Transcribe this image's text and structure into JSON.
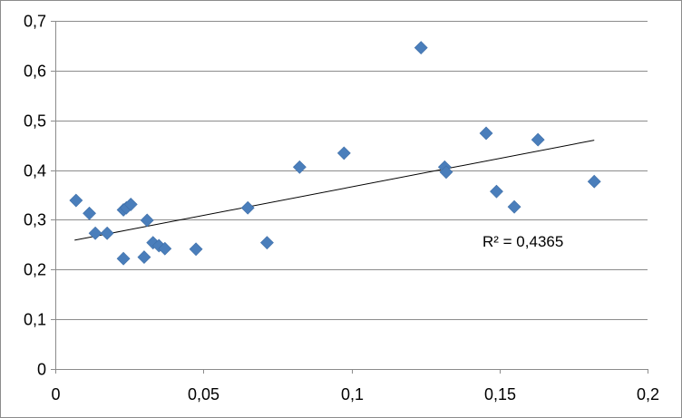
{
  "chart_data": {
    "type": "scatter",
    "title": "",
    "xlabel": "",
    "ylabel": "",
    "xlim": [
      0,
      0.2
    ],
    "ylim": [
      0,
      0.7
    ],
    "x_ticks": [
      0,
      0.05,
      0.1,
      0.15,
      0.2
    ],
    "y_ticks": [
      0,
      0.1,
      0.2,
      0.3,
      0.4,
      0.5,
      0.6,
      0.7
    ],
    "x_tick_labels": [
      "0",
      "0,05",
      "0,1",
      "0,15",
      "0,2"
    ],
    "y_tick_labels": [
      "0",
      "0,1",
      "0,2",
      "0,3",
      "0,4",
      "0,5",
      "0,6",
      "0,7"
    ],
    "grid": "horizontal",
    "legend": "none",
    "marker": "diamond",
    "marker_color": "#4a7ebb",
    "points": [
      {
        "x": 0.007,
        "y": 0.339
      },
      {
        "x": 0.0115,
        "y": 0.313
      },
      {
        "x": 0.0135,
        "y": 0.273
      },
      {
        "x": 0.0175,
        "y": 0.273
      },
      {
        "x": 0.023,
        "y": 0.222
      },
      {
        "x": 0.023,
        "y": 0.32
      },
      {
        "x": 0.024,
        "y": 0.324
      },
      {
        "x": 0.0255,
        "y": 0.331
      },
      {
        "x": 0.03,
        "y": 0.225
      },
      {
        "x": 0.031,
        "y": 0.299
      },
      {
        "x": 0.033,
        "y": 0.254
      },
      {
        "x": 0.035,
        "y": 0.248
      },
      {
        "x": 0.037,
        "y": 0.242
      },
      {
        "x": 0.0475,
        "y": 0.241
      },
      {
        "x": 0.065,
        "y": 0.324
      },
      {
        "x": 0.0715,
        "y": 0.254
      },
      {
        "x": 0.0825,
        "y": 0.406
      },
      {
        "x": 0.0975,
        "y": 0.434
      },
      {
        "x": 0.1235,
        "y": 0.646
      },
      {
        "x": 0.1315,
        "y": 0.406
      },
      {
        "x": 0.132,
        "y": 0.396
      },
      {
        "x": 0.1455,
        "y": 0.474
      },
      {
        "x": 0.149,
        "y": 0.357
      },
      {
        "x": 0.155,
        "y": 0.326
      },
      {
        "x": 0.163,
        "y": 0.461
      },
      {
        "x": 0.182,
        "y": 0.377
      }
    ],
    "trendline": {
      "type": "linear",
      "x_start": 0.0065,
      "y_start": 0.259,
      "x_end": 0.182,
      "y_end": 0.46,
      "color": "#000000",
      "label": "R² = 0,4365"
    }
  }
}
